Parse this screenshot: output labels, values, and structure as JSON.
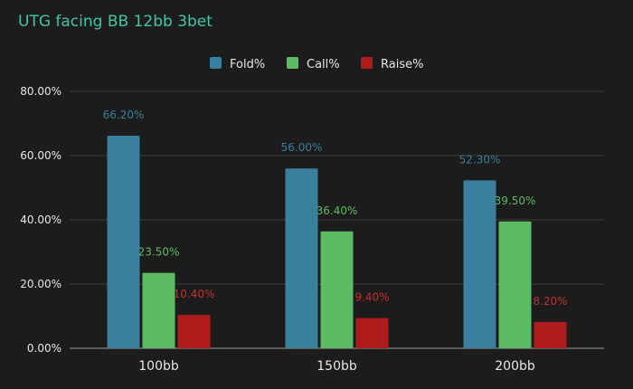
{
  "chart_data": {
    "type": "bar",
    "title": "UTG facing BB 12bb 3bet",
    "categories": [
      "100bb",
      "150bb",
      "200bb"
    ],
    "series": [
      {
        "name": "Fold%",
        "values": [
          66.2,
          56.0,
          52.3
        ],
        "labels": [
          "66.20%",
          "56.00%",
          "52.30%"
        ],
        "color": "#3a7f9e"
      },
      {
        "name": "Call%",
        "values": [
          23.5,
          36.4,
          39.5
        ],
        "labels": [
          "23.50%",
          "36.40%",
          "39.50%"
        ],
        "color": "#5dbb63"
      },
      {
        "name": "Raise%",
        "values": [
          10.4,
          9.4,
          8.2
        ],
        "labels": [
          "10.40%",
          "9.40%",
          "8.20%"
        ],
        "color": "#b01c1c"
      }
    ],
    "ylim": [
      0,
      80
    ],
    "yticks": [
      "0.00%",
      "20.00%",
      "40.00%",
      "60.00%",
      "80.00%"
    ],
    "grid": true,
    "legend_position": "top-center",
    "label_colors": {
      "Fold%": "#3a7f9e",
      "Call%": "#5dbb63",
      "Raise%": "#c03030"
    }
  }
}
